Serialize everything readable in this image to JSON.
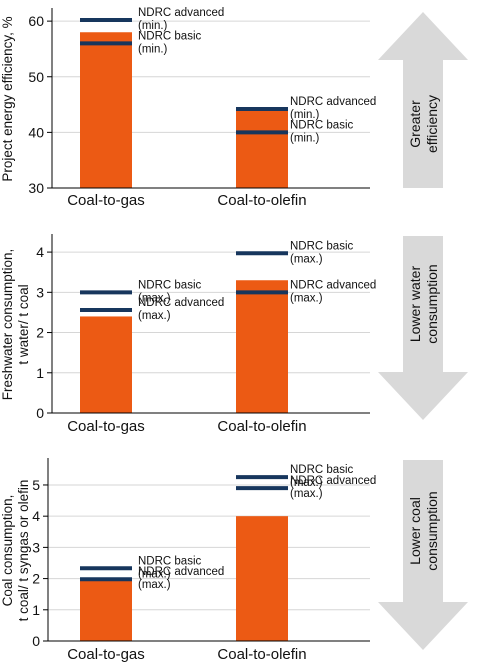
{
  "colors": {
    "bar": "#ec5a14",
    "threshold_line": "#17365d",
    "arrow": "#d9d9d9",
    "axis": "#000000",
    "grid": "#d6d6d6"
  },
  "chart_data": [
    {
      "type": "bar",
      "ylabel": [
        "Project energy efficiency, %"
      ],
      "categories": [
        "Coal-to-gas",
        "Coal-to-olefin"
      ],
      "values": [
        58,
        44
      ],
      "ylim": [
        30,
        62
      ],
      "yticks": [
        30,
        40,
        50,
        60
      ],
      "grid": true,
      "thresholds": [
        {
          "category": "Coal-to-gas",
          "value": 60.2,
          "label": [
            "NDRC advanced",
            "(min.)"
          ]
        },
        {
          "category": "Coal-to-gas",
          "value": 56.0,
          "label": [
            "NDRC basic",
            "(min.)"
          ]
        },
        {
          "category": "Coal-to-olefin",
          "value": 44.2,
          "label": [
            "NDRC advanced",
            "(min.)"
          ]
        },
        {
          "category": "Coal-to-olefin",
          "value": 40.0,
          "label": [
            "NDRC basic",
            "(min.)"
          ]
        }
      ],
      "arrow": {
        "direction": "up",
        "label": [
          "Greater",
          "efficiency"
        ]
      }
    },
    {
      "type": "bar",
      "ylabel": [
        "Freshwater consumption,",
        "t water/ t coal"
      ],
      "categories": [
        "Coal-to-gas",
        "Coal-to-olefin"
      ],
      "values": [
        2.4,
        3.3
      ],
      "ylim": [
        0,
        4.4
      ],
      "yticks": [
        0,
        1,
        2,
        3,
        4
      ],
      "grid": true,
      "thresholds": [
        {
          "category": "Coal-to-gas",
          "value": 3.0,
          "label": [
            "NDRC basic",
            "(max.)"
          ]
        },
        {
          "category": "Coal-to-gas",
          "value": 2.56,
          "label": [
            "NDRC advanced",
            "(max.)"
          ]
        },
        {
          "category": "Coal-to-olefin",
          "value": 3.97,
          "label": [
            "NDRC basic",
            "(max.)"
          ]
        },
        {
          "category": "Coal-to-olefin",
          "value": 3.0,
          "label": [
            "NDRC advanced",
            "(max.)"
          ]
        }
      ],
      "arrow": {
        "direction": "down",
        "label": [
          "Lower water",
          "consumption"
        ]
      }
    },
    {
      "type": "bar",
      "ylabel": [
        "Coal consumption,",
        "t coal/ t syngas or olefin"
      ],
      "categories": [
        "Coal-to-gas",
        "Coal-to-olefin"
      ],
      "values": [
        2.0,
        4.0
      ],
      "ylim": [
        0,
        5.8
      ],
      "yticks": [
        0,
        1,
        2,
        3,
        4,
        5
      ],
      "grid": true,
      "thresholds": [
        {
          "category": "Coal-to-gas",
          "value": 2.33,
          "label": [
            "NDRC basic",
            "(max.)"
          ]
        },
        {
          "category": "Coal-to-gas",
          "value": 1.98,
          "label": [
            "NDRC advanced",
            "(max.)"
          ]
        },
        {
          "category": "Coal-to-olefin",
          "value": 5.25,
          "label": [
            "NDRC basic",
            "(max.)"
          ]
        },
        {
          "category": "Coal-to-olefin",
          "value": 4.9,
          "label": [
            "NDRC advanced",
            "(max.)"
          ]
        }
      ],
      "arrow": {
        "direction": "down",
        "label": [
          "Lower coal",
          "consumption"
        ]
      }
    }
  ]
}
